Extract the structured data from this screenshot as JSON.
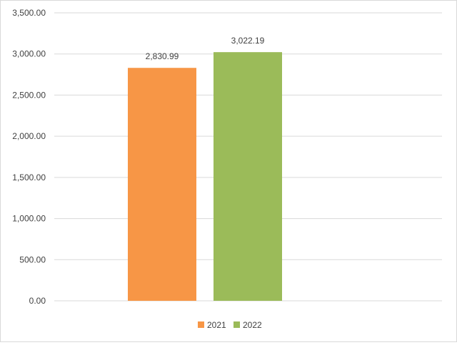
{
  "chart_data": {
    "type": "bar",
    "title": "",
    "xlabel": "",
    "ylabel": "",
    "ylim": [
      0,
      3500
    ],
    "yticks": [
      0,
      500,
      1000,
      1500,
      2000,
      2500,
      3000,
      3500
    ],
    "ytick_labels": [
      "0.00",
      "500.00",
      "1,000.00",
      "1,500.00",
      "2,000.00",
      "2,500.00",
      "3,000.00",
      "3,500.00"
    ],
    "grid": true,
    "legend_position": "bottom",
    "series": [
      {
        "name": "2021",
        "value": 2830.99,
        "label": "2,830.99",
        "color": "#F79646"
      },
      {
        "name": "2022",
        "value": 3022.19,
        "label": "3,022.19",
        "color": "#9BBB59"
      }
    ],
    "colors": {
      "gridline": "#d9d9d9",
      "text": "#404040"
    }
  }
}
